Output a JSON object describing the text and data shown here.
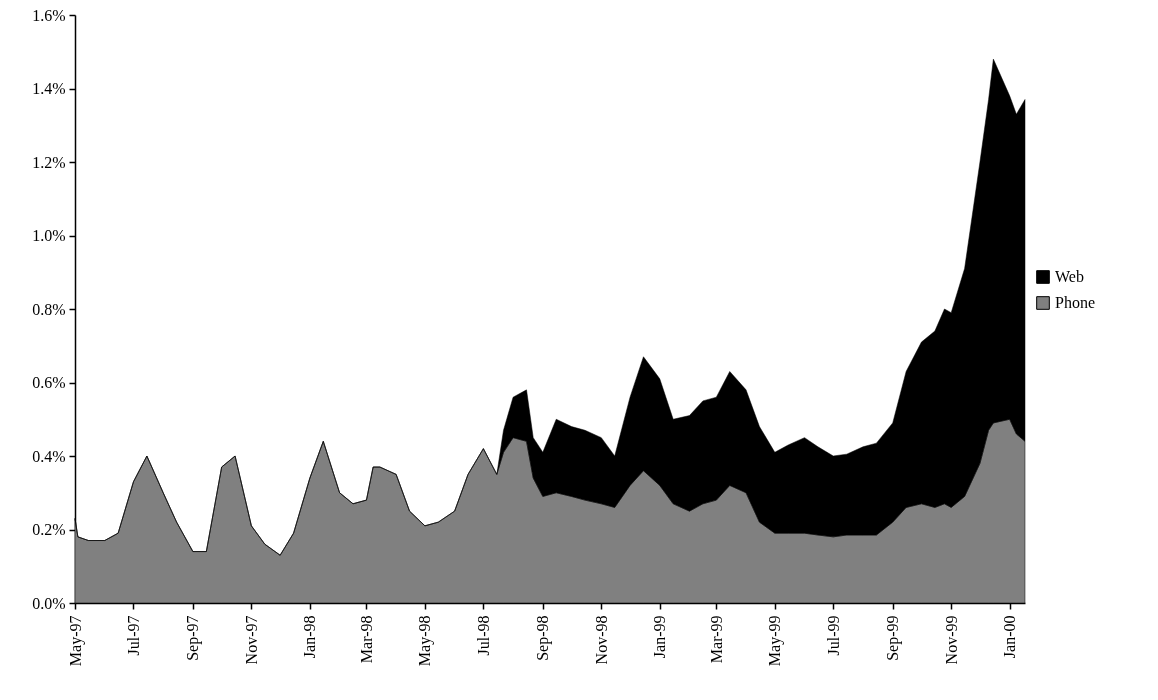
{
  "chart_data": {
    "type": "area",
    "stacked": true,
    "legend": "right",
    "x": [
      "1997-05-01",
      "1997-05-04",
      "1997-05-15",
      "1997-06-01",
      "1997-06-15",
      "1997-07-01",
      "1997-07-15",
      "1997-08-01",
      "1997-08-15",
      "1997-09-01",
      "1997-09-15",
      "1997-10-01",
      "1997-10-15",
      "1997-11-01",
      "1997-11-15",
      "1997-12-01",
      "1997-12-15",
      "1998-01-01",
      "1998-01-15",
      "1998-02-01",
      "1998-02-15",
      "1998-03-01",
      "1998-03-08",
      "1998-03-15",
      "1998-04-01",
      "1998-04-15",
      "1998-05-01",
      "1998-05-15",
      "1998-06-01",
      "1998-06-15",
      "1998-07-01",
      "1998-07-15",
      "1998-07-22",
      "1998-08-01",
      "1998-08-15",
      "1998-08-22",
      "1998-09-01",
      "1998-09-15",
      "1998-10-01",
      "1998-10-15",
      "1998-11-01",
      "1998-11-15",
      "1998-12-01",
      "1998-12-15",
      "1999-01-01",
      "1999-01-15",
      "1999-02-01",
      "1999-02-15",
      "1999-03-01",
      "1999-03-15",
      "1999-04-01",
      "1999-04-15",
      "1999-05-01",
      "1999-05-15",
      "1999-06-01",
      "1999-06-15",
      "1999-07-01",
      "1999-07-15",
      "1999-08-01",
      "1999-08-15",
      "1999-09-01",
      "1999-09-15",
      "1999-10-01",
      "1999-10-15",
      "1999-10-25",
      "1999-11-01",
      "1999-11-15",
      "1999-12-01",
      "1999-12-10",
      "1999-12-15",
      "2000-01-01",
      "2000-01-08",
      "2000-01-17"
    ],
    "series": [
      {
        "name": "Phone",
        "color": "#808080",
        "values": [
          0.23,
          0.18,
          0.17,
          0.17,
          0.19,
          0.33,
          0.4,
          0.3,
          0.22,
          0.14,
          0.14,
          0.37,
          0.4,
          0.21,
          0.16,
          0.13,
          0.19,
          0.34,
          0.44,
          0.3,
          0.27,
          0.28,
          0.37,
          0.37,
          0.35,
          0.25,
          0.21,
          0.22,
          0.25,
          0.35,
          0.42,
          0.35,
          0.41,
          0.45,
          0.44,
          0.34,
          0.29,
          0.3,
          0.29,
          0.28,
          0.27,
          0.26,
          0.32,
          0.36,
          0.32,
          0.27,
          0.25,
          0.27,
          0.28,
          0.32,
          0.3,
          0.22,
          0.19,
          0.19,
          0.19,
          0.185,
          0.18,
          0.185,
          0.185,
          0.185,
          0.22,
          0.26,
          0.27,
          0.26,
          0.27,
          0.26,
          0.29,
          0.38,
          0.47,
          0.49,
          0.5,
          0.46,
          0.44
        ]
      },
      {
        "name": "Web",
        "color": "#000000",
        "values": [
          0,
          0,
          0,
          0,
          0,
          0,
          0,
          0,
          0,
          0,
          0,
          0,
          0,
          0,
          0,
          0,
          0,
          0,
          0,
          0,
          0,
          0,
          0,
          0,
          0,
          0,
          0,
          0,
          0,
          0,
          0,
          0,
          0.06,
          0.11,
          0.14,
          0.11,
          0.12,
          0.2,
          0.19,
          0.19,
          0.18,
          0.14,
          0.24,
          0.31,
          0.29,
          0.23,
          0.26,
          0.28,
          0.28,
          0.31,
          0.28,
          0.26,
          0.22,
          0.24,
          0.26,
          0.24,
          0.22,
          0.22,
          0.24,
          0.25,
          0.27,
          0.37,
          0.44,
          0.48,
          0.53,
          0.53,
          0.62,
          0.82,
          0.9,
          0.99,
          0.88,
          0.87,
          0.93
        ]
      }
    ],
    "xlim": [
      "1997-05-01",
      "2000-01-17"
    ],
    "xticks": [
      {
        "value": "1997-05-01",
        "label": "May-97"
      },
      {
        "value": "1997-07-01",
        "label": "Jul-97"
      },
      {
        "value": "1997-09-01",
        "label": "Sep-97"
      },
      {
        "value": "1997-11-01",
        "label": "Nov-97"
      },
      {
        "value": "1998-01-01",
        "label": "Jan-98"
      },
      {
        "value": "1998-03-01",
        "label": "Mar-98"
      },
      {
        "value": "1998-05-01",
        "label": "May-98"
      },
      {
        "value": "1998-07-01",
        "label": "Jul-98"
      },
      {
        "value": "1998-09-01",
        "label": "Sep-98"
      },
      {
        "value": "1998-11-01",
        "label": "Nov-98"
      },
      {
        "value": "1999-01-01",
        "label": "Jan-99"
      },
      {
        "value": "1999-03-01",
        "label": "Mar-99"
      },
      {
        "value": "1999-05-01",
        "label": "May-99"
      },
      {
        "value": "1999-07-01",
        "label": "Jul-99"
      },
      {
        "value": "1999-09-01",
        "label": "Sep-99"
      },
      {
        "value": "1999-11-01",
        "label": "Nov-99"
      },
      {
        "value": "2000-01-01",
        "label": "Jan-00"
      }
    ],
    "ylim": [
      0,
      1.6
    ],
    "yticks": [
      {
        "value": 0,
        "label": "0.0%"
      },
      {
        "value": 0.2,
        "label": "0.2%"
      },
      {
        "value": 0.4,
        "label": "0.4%"
      },
      {
        "value": 0.6,
        "label": "0.6%"
      },
      {
        "value": 0.8,
        "label": "0.8%"
      },
      {
        "value": 1.0,
        "label": "1.0%"
      },
      {
        "value": 1.2,
        "label": "1.2%"
      },
      {
        "value": 1.4,
        "label": "1.4%"
      },
      {
        "value": 1.6,
        "label": "1.6%"
      }
    ]
  }
}
